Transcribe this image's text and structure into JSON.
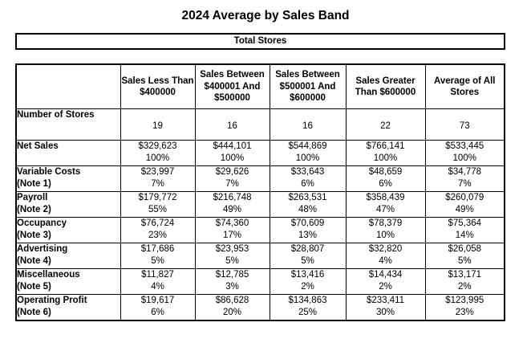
{
  "title": "2024 Average by Sales Band",
  "banner": "Total Stores",
  "columns": [
    "Sales Less Than $400000",
    "Sales Between $400001 And $500000",
    "Sales Between $500001 And $600000",
    "Sales Greater Than $600000",
    "Average of All Stores"
  ],
  "stores_row": {
    "label": "Number of Stores",
    "values": [
      "19",
      "16",
      "16",
      "22",
      "73"
    ]
  },
  "rows": [
    {
      "label1": "Net Sales",
      "label2": "",
      "values": [
        [
          "$329,623",
          "100%"
        ],
        [
          "$444,101",
          "100%"
        ],
        [
          "$544,869",
          "100%"
        ],
        [
          "$766,141",
          "100%"
        ],
        [
          "$533,445",
          "100%"
        ]
      ]
    },
    {
      "label1": "Variable Costs",
      "label2": "(Note 1)",
      "values": [
        [
          "$23,997",
          "7%"
        ],
        [
          "$29,626",
          "7%"
        ],
        [
          "$33,643",
          "6%"
        ],
        [
          "$48,659",
          "6%"
        ],
        [
          "$34,778",
          "7%"
        ]
      ]
    },
    {
      "label1": "Payroll",
      "label2": "(Note 2)",
      "values": [
        [
          "$179,772",
          "55%"
        ],
        [
          "$216,748",
          "49%"
        ],
        [
          "$263,531",
          "48%"
        ],
        [
          "$358,439",
          "47%"
        ],
        [
          "$260,079",
          "49%"
        ]
      ]
    },
    {
      "label1": "Occupancy",
      "label2": "(Note 3)",
      "values": [
        [
          "$76,724",
          "23%"
        ],
        [
          "$74,360",
          "17%"
        ],
        [
          "$70,609",
          "13%"
        ],
        [
          "$78,379",
          "10%"
        ],
        [
          "$75,364",
          "14%"
        ]
      ]
    },
    {
      "label1": "Advertising",
      "label2": "(Note 4)",
      "values": [
        [
          "$17,686",
          "5%"
        ],
        [
          "$23,953",
          "5%"
        ],
        [
          "$28,807",
          "5%"
        ],
        [
          "$32,820",
          "4%"
        ],
        [
          "$26,058",
          "5%"
        ]
      ]
    },
    {
      "label1": "Miscellaneous",
      "label2": "(Note 5)",
      "values": [
        [
          "$11,827",
          "4%"
        ],
        [
          "$12,785",
          "3%"
        ],
        [
          "$13,416",
          "2%"
        ],
        [
          "$14,434",
          "2%"
        ],
        [
          "$13,171",
          "2%"
        ]
      ]
    },
    {
      "label1": "Operating Profit",
      "label2": "(Note 6)",
      "values": [
        [
          "$19,617",
          "6%"
        ],
        [
          "$86,628",
          "20%"
        ],
        [
          "$134,863",
          "25%"
        ],
        [
          "$233,411",
          "30%"
        ],
        [
          "$123,995",
          "23%"
        ]
      ]
    }
  ]
}
